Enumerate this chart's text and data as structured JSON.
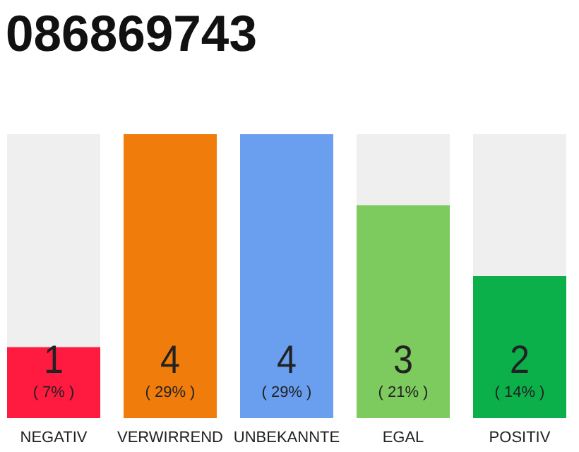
{
  "chart_data": {
    "type": "bar",
    "title": "086869743",
    "categories": [
      "NEGATIV",
      "VERWIRREND",
      "UNBEKANNTE",
      "EGAL",
      "POSITIV"
    ],
    "values": [
      1,
      4,
      4,
      3,
      2
    ],
    "colors": [
      "#ff1a40",
      "#f07c0c",
      "#6a9eef",
      "#7dcb5e",
      "#0bb04b"
    ],
    "data_labels": true,
    "annotations": [
      "( 7% )",
      "( 29% )",
      "( 29% )",
      "( 21% )",
      "( 14% )"
    ]
  }
}
